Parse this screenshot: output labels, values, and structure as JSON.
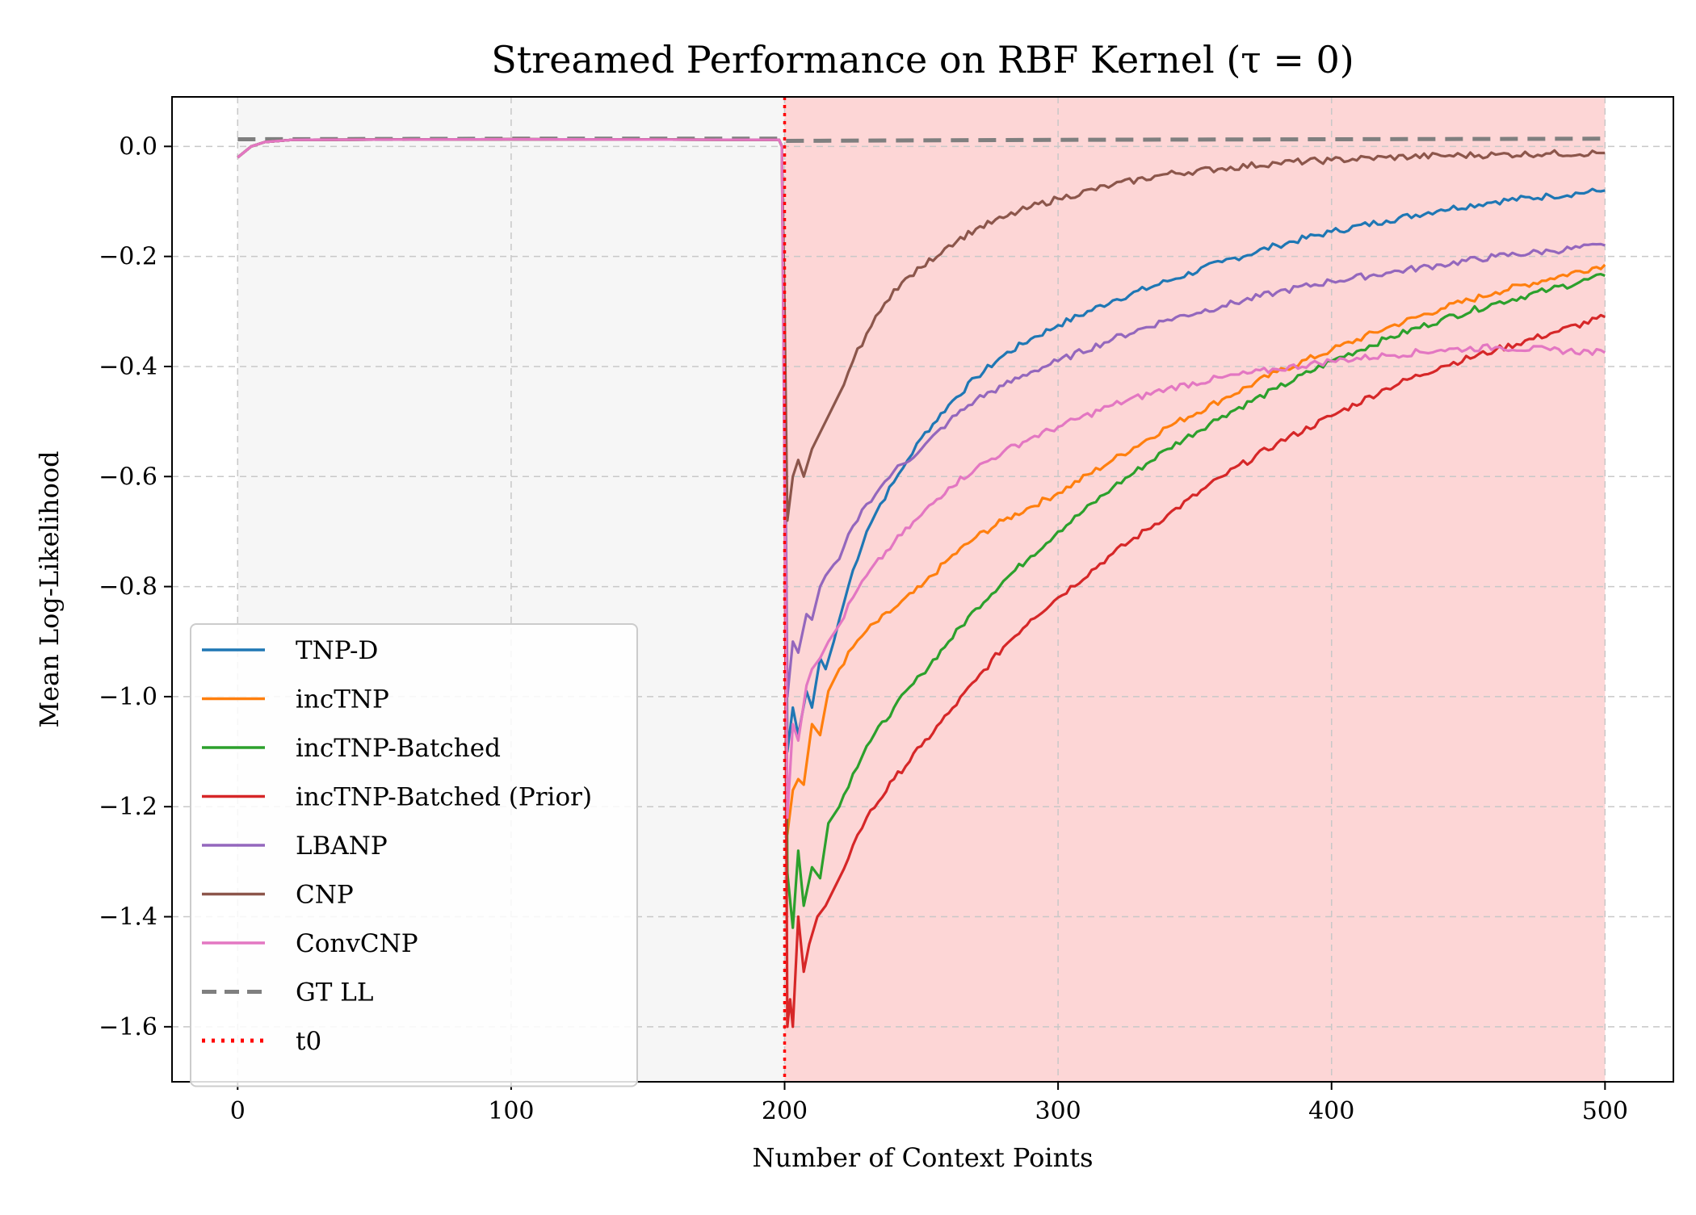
{
  "chart_data": {
    "type": "line",
    "title": "Streamed Performance on RBF Kernel (τ = 0)",
    "xlabel": "Number of Context Points",
    "ylabel": "Mean Log-Likelihood",
    "xlim": [
      -24,
      525
    ],
    "ylim": [
      -1.7,
      0.09
    ],
    "xticks": [
      0,
      100,
      200,
      300,
      400,
      500
    ],
    "yticks": [
      0.0,
      -0.2,
      -0.4,
      -0.6,
      -0.8,
      -1.0,
      -1.2,
      -1.4,
      -1.6
    ],
    "xtick_labels": [
      "0",
      "100",
      "200",
      "300",
      "400",
      "500"
    ],
    "ytick_labels": [
      "0.0",
      "−0.2",
      "−0.4",
      "−0.6",
      "−0.8",
      "−1.0",
      "−1.2",
      "−1.4",
      "−1.6"
    ],
    "grid": true,
    "legend_position": "lower-left",
    "shaded_regions": [
      {
        "from": 0,
        "to": 200,
        "color": "#f6f6f6"
      },
      {
        "from": 200,
        "to": 500,
        "color": "#fdd6d6"
      }
    ],
    "series": [
      {
        "name": "TNP-D",
        "color": "#1f77b4",
        "style": "solid",
        "points": [
          [
            0,
            -0.02
          ],
          [
            5,
            0.0
          ],
          [
            10,
            0.008
          ],
          [
            20,
            0.012
          ],
          [
            100,
            0.013
          ],
          [
            198,
            0.012
          ],
          [
            199,
            0.0
          ],
          [
            200,
            -0.4
          ],
          [
            201,
            -1.1
          ],
          [
            203,
            -1.02
          ],
          [
            205,
            -1.07
          ],
          [
            208,
            -0.99
          ],
          [
            210,
            -1.02
          ],
          [
            213,
            -0.93
          ],
          [
            215,
            -0.95
          ],
          [
            218,
            -0.9
          ],
          [
            220,
            -0.86
          ],
          [
            225,
            -0.77
          ],
          [
            230,
            -0.7
          ],
          [
            235,
            -0.65
          ],
          [
            240,
            -0.61
          ],
          [
            245,
            -0.57
          ],
          [
            250,
            -0.53
          ],
          [
            260,
            -0.47
          ],
          [
            270,
            -0.42
          ],
          [
            280,
            -0.38
          ],
          [
            290,
            -0.35
          ],
          [
            300,
            -0.325
          ],
          [
            320,
            -0.28
          ],
          [
            340,
            -0.245
          ],
          [
            360,
            -0.21
          ],
          [
            380,
            -0.18
          ],
          [
            400,
            -0.155
          ],
          [
            420,
            -0.135
          ],
          [
            440,
            -0.115
          ],
          [
            460,
            -0.1
          ],
          [
            480,
            -0.09
          ],
          [
            500,
            -0.08
          ]
        ]
      },
      {
        "name": "incTNP",
        "color": "#ff7f0e",
        "style": "solid",
        "points": [
          [
            0,
            -0.02
          ],
          [
            5,
            0.0
          ],
          [
            10,
            0.008
          ],
          [
            20,
            0.012
          ],
          [
            100,
            0.013
          ],
          [
            198,
            0.012
          ],
          [
            199,
            0.0
          ],
          [
            200,
            -0.5
          ],
          [
            201,
            -1.25
          ],
          [
            203,
            -1.17
          ],
          [
            205,
            -1.15
          ],
          [
            207,
            -1.16
          ],
          [
            210,
            -1.05
          ],
          [
            213,
            -1.07
          ],
          [
            216,
            -0.99
          ],
          [
            220,
            -0.95
          ],
          [
            225,
            -0.91
          ],
          [
            230,
            -0.88
          ],
          [
            240,
            -0.84
          ],
          [
            250,
            -0.8
          ],
          [
            260,
            -0.75
          ],
          [
            270,
            -0.71
          ],
          [
            280,
            -0.68
          ],
          [
            290,
            -0.655
          ],
          [
            300,
            -0.63
          ],
          [
            320,
            -0.57
          ],
          [
            340,
            -0.51
          ],
          [
            360,
            -0.46
          ],
          [
            380,
            -0.41
          ],
          [
            400,
            -0.37
          ],
          [
            420,
            -0.33
          ],
          [
            440,
            -0.295
          ],
          [
            460,
            -0.265
          ],
          [
            480,
            -0.24
          ],
          [
            500,
            -0.215
          ]
        ]
      },
      {
        "name": "incTNP-Batched",
        "color": "#2ca02c",
        "style": "solid",
        "points": [
          [
            0,
            -0.02
          ],
          [
            5,
            0.0
          ],
          [
            10,
            0.008
          ],
          [
            20,
            0.012
          ],
          [
            100,
            0.013
          ],
          [
            198,
            0.012
          ],
          [
            199,
            0.0
          ],
          [
            200,
            -0.5
          ],
          [
            201,
            -1.32
          ],
          [
            203,
            -1.42
          ],
          [
            205,
            -1.28
          ],
          [
            207,
            -1.38
          ],
          [
            210,
            -1.31
          ],
          [
            213,
            -1.33
          ],
          [
            216,
            -1.23
          ],
          [
            220,
            -1.2
          ],
          [
            225,
            -1.14
          ],
          [
            230,
            -1.09
          ],
          [
            240,
            -1.02
          ],
          [
            250,
            -0.96
          ],
          [
            260,
            -0.9
          ],
          [
            270,
            -0.84
          ],
          [
            280,
            -0.79
          ],
          [
            290,
            -0.745
          ],
          [
            300,
            -0.7
          ],
          [
            320,
            -0.62
          ],
          [
            340,
            -0.55
          ],
          [
            360,
            -0.49
          ],
          [
            380,
            -0.44
          ],
          [
            400,
            -0.39
          ],
          [
            420,
            -0.35
          ],
          [
            440,
            -0.315
          ],
          [
            460,
            -0.285
          ],
          [
            480,
            -0.26
          ],
          [
            500,
            -0.235
          ]
        ]
      },
      {
        "name": "incTNP-Batched (Prior)",
        "color": "#d62728",
        "style": "solid",
        "points": [
          [
            0,
            -0.02
          ],
          [
            5,
            0.0
          ],
          [
            10,
            0.008
          ],
          [
            20,
            0.012
          ],
          [
            100,
            0.013
          ],
          [
            198,
            0.012
          ],
          [
            199,
            0.0
          ],
          [
            200,
            -0.6
          ],
          [
            201,
            -1.6
          ],
          [
            202,
            -1.55
          ],
          [
            203,
            -1.6
          ],
          [
            205,
            -1.4
          ],
          [
            207,
            -1.5
          ],
          [
            209,
            -1.45
          ],
          [
            212,
            -1.4
          ],
          [
            215,
            -1.38
          ],
          [
            218,
            -1.35
          ],
          [
            220,
            -1.33
          ],
          [
            225,
            -1.27
          ],
          [
            230,
            -1.22
          ],
          [
            240,
            -1.15
          ],
          [
            250,
            -1.09
          ],
          [
            260,
            -1.03
          ],
          [
            270,
            -0.97
          ],
          [
            280,
            -0.91
          ],
          [
            290,
            -0.86
          ],
          [
            300,
            -0.82
          ],
          [
            320,
            -0.74
          ],
          [
            340,
            -0.67
          ],
          [
            360,
            -0.6
          ],
          [
            380,
            -0.54
          ],
          [
            400,
            -0.49
          ],
          [
            420,
            -0.44
          ],
          [
            440,
            -0.4
          ],
          [
            460,
            -0.37
          ],
          [
            480,
            -0.34
          ],
          [
            500,
            -0.31
          ]
        ]
      },
      {
        "name": "LBANP",
        "color": "#9467bd",
        "style": "solid",
        "points": [
          [
            0,
            -0.02
          ],
          [
            5,
            0.0
          ],
          [
            10,
            0.008
          ],
          [
            20,
            0.012
          ],
          [
            100,
            0.013
          ],
          [
            198,
            0.012
          ],
          [
            199,
            0.0
          ],
          [
            200,
            -0.4
          ],
          [
            201,
            -1.0
          ],
          [
            203,
            -0.9
          ],
          [
            205,
            -0.92
          ],
          [
            208,
            -0.85
          ],
          [
            210,
            -0.86
          ],
          [
            213,
            -0.8
          ],
          [
            215,
            -0.78
          ],
          [
            218,
            -0.76
          ],
          [
            220,
            -0.75
          ],
          [
            225,
            -0.69
          ],
          [
            230,
            -0.65
          ],
          [
            235,
            -0.62
          ],
          [
            240,
            -0.59
          ],
          [
            250,
            -0.55
          ],
          [
            260,
            -0.5
          ],
          [
            270,
            -0.46
          ],
          [
            280,
            -0.435
          ],
          [
            290,
            -0.41
          ],
          [
            300,
            -0.39
          ],
          [
            320,
            -0.35
          ],
          [
            340,
            -0.315
          ],
          [
            360,
            -0.29
          ],
          [
            380,
            -0.265
          ],
          [
            400,
            -0.245
          ],
          [
            420,
            -0.23
          ],
          [
            440,
            -0.215
          ],
          [
            460,
            -0.2
          ],
          [
            480,
            -0.19
          ],
          [
            500,
            -0.18
          ]
        ]
      },
      {
        "name": "CNP",
        "color": "#8c564b",
        "style": "solid",
        "points": [
          [
            0,
            -0.02
          ],
          [
            5,
            0.0
          ],
          [
            10,
            0.008
          ],
          [
            20,
            0.012
          ],
          [
            100,
            0.013
          ],
          [
            198,
            0.012
          ],
          [
            199,
            0.0
          ],
          [
            200,
            -0.3
          ],
          [
            201,
            -0.68
          ],
          [
            203,
            -0.6
          ],
          [
            205,
            -0.57
          ],
          [
            207,
            -0.6
          ],
          [
            210,
            -0.55
          ],
          [
            213,
            -0.52
          ],
          [
            216,
            -0.49
          ],
          [
            220,
            -0.45
          ],
          [
            225,
            -0.39
          ],
          [
            230,
            -0.34
          ],
          [
            235,
            -0.3
          ],
          [
            240,
            -0.26
          ],
          [
            250,
            -0.22
          ],
          [
            260,
            -0.18
          ],
          [
            270,
            -0.15
          ],
          [
            280,
            -0.13
          ],
          [
            290,
            -0.11
          ],
          [
            300,
            -0.095
          ],
          [
            320,
            -0.07
          ],
          [
            340,
            -0.05
          ],
          [
            360,
            -0.04
          ],
          [
            380,
            -0.03
          ],
          [
            400,
            -0.025
          ],
          [
            420,
            -0.02
          ],
          [
            440,
            -0.017
          ],
          [
            460,
            -0.015
          ],
          [
            480,
            -0.013
          ],
          [
            500,
            -0.012
          ]
        ]
      },
      {
        "name": "ConvCNP",
        "color": "#e377c2",
        "style": "solid",
        "points": [
          [
            0,
            -0.02
          ],
          [
            5,
            0.0
          ],
          [
            10,
            0.008
          ],
          [
            20,
            0.012
          ],
          [
            100,
            0.013
          ],
          [
            198,
            0.012
          ],
          [
            199,
            0.0
          ],
          [
            200,
            -0.6
          ],
          [
            201,
            -1.22
          ],
          [
            203,
            -1.05
          ],
          [
            205,
            -1.08
          ],
          [
            208,
            -0.98
          ],
          [
            210,
            -0.95
          ],
          [
            213,
            -0.93
          ],
          [
            216,
            -0.9
          ],
          [
            220,
            -0.87
          ],
          [
            225,
            -0.82
          ],
          [
            230,
            -0.78
          ],
          [
            240,
            -0.72
          ],
          [
            250,
            -0.67
          ],
          [
            260,
            -0.62
          ],
          [
            270,
            -0.585
          ],
          [
            280,
            -0.555
          ],
          [
            290,
            -0.53
          ],
          [
            300,
            -0.51
          ],
          [
            320,
            -0.47
          ],
          [
            340,
            -0.44
          ],
          [
            360,
            -0.42
          ],
          [
            380,
            -0.405
          ],
          [
            400,
            -0.39
          ],
          [
            420,
            -0.38
          ],
          [
            440,
            -0.37
          ],
          [
            460,
            -0.365
          ],
          [
            480,
            -0.37
          ],
          [
            500,
            -0.375
          ]
        ]
      },
      {
        "name": "GT LL",
        "color": "#7f7f7f",
        "style": "dashed",
        "points": [
          [
            0,
            0.013
          ],
          [
            100,
            0.014
          ],
          [
            199,
            0.014
          ],
          [
            200,
            0.01
          ],
          [
            300,
            0.012
          ],
          [
            400,
            0.013
          ],
          [
            500,
            0.014
          ]
        ]
      }
    ],
    "vline": {
      "name": "t0",
      "x": 200,
      "color": "#ff0000",
      "style": "dotted"
    }
  }
}
